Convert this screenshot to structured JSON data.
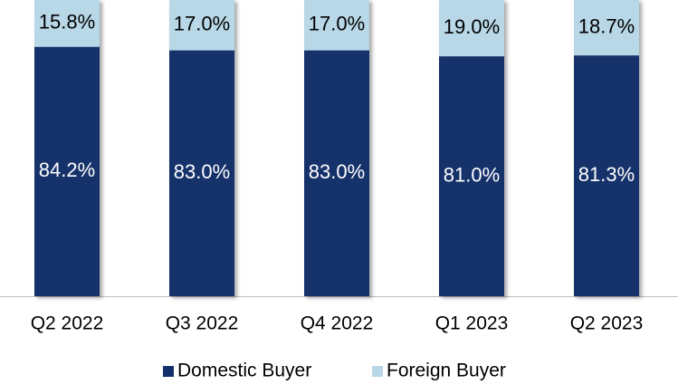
{
  "chart_data": {
    "type": "bar",
    "stacked": true,
    "categories": [
      "Q2 2022",
      "Q3 2022",
      "Q4 2022",
      "Q1 2023",
      "Q2 2023"
    ],
    "series": [
      {
        "name": "Domestic Buyer",
        "color": "#13306b",
        "values": [
          84.2,
          83.0,
          83.0,
          81.0,
          81.3
        ],
        "value_labels": [
          "84.2%",
          "83.0%",
          "83.0%",
          "81.0%",
          "81.3%"
        ]
      },
      {
        "name": "Foreign Buyer",
        "color": "#b8d8e7",
        "values": [
          15.8,
          17.0,
          17.0,
          19.0,
          18.7
        ],
        "value_labels": [
          "15.8%",
          "17.0%",
          "17.0%",
          "19.0%",
          "18.7%"
        ]
      }
    ],
    "legend": "bottom"
  }
}
